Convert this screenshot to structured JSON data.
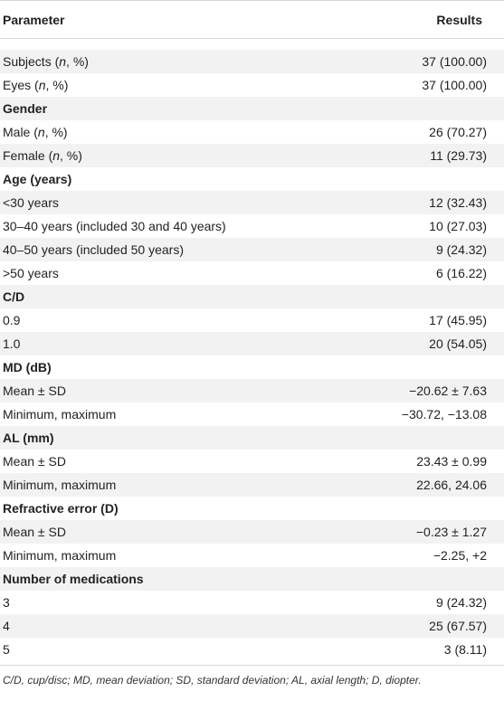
{
  "table": {
    "header": {
      "parameter": "Parameter",
      "results": "Results"
    },
    "rows": [
      {
        "type": "data",
        "parameter": "Subjects (n, %)",
        "result": "37 (100.00)"
      },
      {
        "type": "data",
        "parameter": "Eyes (n, %)",
        "result": "37 (100.00)"
      },
      {
        "type": "section",
        "parameter": "Gender",
        "result": ""
      },
      {
        "type": "data",
        "parameter": "Male (n, %)",
        "result": "26 (70.27)"
      },
      {
        "type": "data",
        "parameter": "Female (n, %)",
        "result": "11 (29.73)"
      },
      {
        "type": "section",
        "parameter": "Age (years)",
        "result": ""
      },
      {
        "type": "data",
        "parameter": "<30 years",
        "result": "12 (32.43)"
      },
      {
        "type": "data",
        "parameter": "30–40 years (included 30 and 40 years)",
        "result": "10 (27.03)"
      },
      {
        "type": "data",
        "parameter": "40–50 years (included 50 years)",
        "result": "9 (24.32)"
      },
      {
        "type": "data",
        "parameter": ">50 years",
        "result": "6 (16.22)"
      },
      {
        "type": "section",
        "parameter": "C/D",
        "result": ""
      },
      {
        "type": "data",
        "parameter": "0.9",
        "result": "17 (45.95)"
      },
      {
        "type": "data",
        "parameter": "1.0",
        "result": "20 (54.05)"
      },
      {
        "type": "section",
        "parameter": "MD (dB)",
        "result": ""
      },
      {
        "type": "data",
        "parameter": "Mean ± SD",
        "result": "−20.62 ± 7.63"
      },
      {
        "type": "data",
        "parameter": "Minimum, maximum",
        "result": "−30.72, −13.08"
      },
      {
        "type": "section",
        "parameter": "AL (mm)",
        "result": ""
      },
      {
        "type": "data",
        "parameter": "Mean ± SD",
        "result": "23.43 ± 0.99"
      },
      {
        "type": "data",
        "parameter": "Minimum, maximum",
        "result": "22.66, 24.06"
      },
      {
        "type": "section",
        "parameter": "Refractive error (D)",
        "result": ""
      },
      {
        "type": "data",
        "parameter": "Mean ± SD",
        "result": "−0.23 ± 1.27"
      },
      {
        "type": "data",
        "parameter": "Minimum, maximum",
        "result": "−2.25, +2"
      },
      {
        "type": "section",
        "parameter": "Number of medications",
        "result": ""
      },
      {
        "type": "data",
        "parameter": "3",
        "result": "9 (24.32)"
      },
      {
        "type": "data",
        "parameter": "4",
        "result": "25 (67.57)"
      },
      {
        "type": "data",
        "parameter": "5",
        "result": "3 (8.11)"
      }
    ],
    "footnote": "C/D, cup/disc; MD, mean deviation; SD, standard deviation; AL, axial length; D, diopter."
  }
}
